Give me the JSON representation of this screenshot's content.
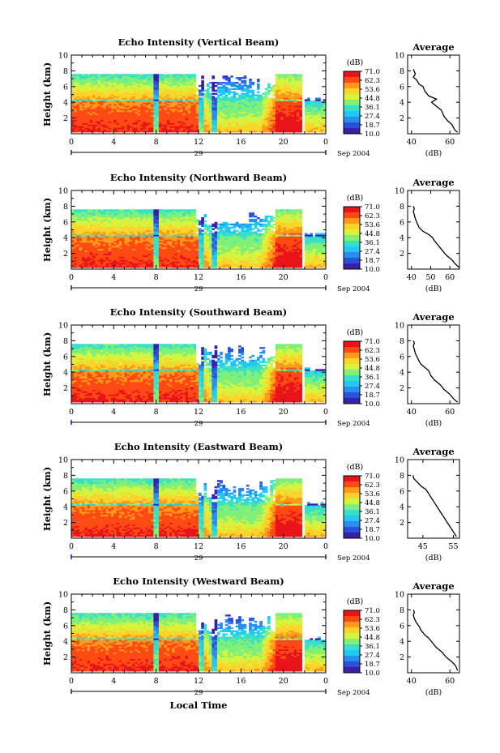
{
  "colors": {
    "cb": [
      "#3b1fa6",
      "#2a52d8",
      "#2b8df0",
      "#22c7f2",
      "#38e0c8",
      "#7ff07a",
      "#d6f43e",
      "#ffd42a",
      "#ff9a1a",
      "#ff4a14",
      "#e8141a"
    ],
    "white": "#ffffff"
  },
  "chart_data": [
    {
      "type": "heatmap",
      "title": "Echo Intensity (Vertical Beam)",
      "ylabel": "Height (km)",
      "xlabel": "",
      "x_ticks": [
        "0",
        "4",
        "8",
        "12",
        "16",
        "20",
        "0"
      ],
      "y_ticks": [
        "2",
        "4",
        "6",
        "8",
        "10"
      ],
      "xlim": [
        0,
        24
      ],
      "ylim": [
        0,
        10
      ],
      "date_day": "29",
      "date_rest": "Sep 2004",
      "colorbar": {
        "unit": "(dB)",
        "ticks": [
          "71.0",
          "62.3",
          "53.6",
          "44.8",
          "36.1",
          "27.4",
          "18.7",
          "10.0"
        ],
        "range": [
          10.0,
          71.0
        ]
      },
      "average": {
        "title": "Average",
        "xlabel": "(dB)",
        "x_ticks": [
          "40",
          "60"
        ],
        "xlim": [
          38,
          65
        ],
        "ylim": [
          0,
          10
        ],
        "profile": [
          [
            64,
            0.2
          ],
          [
            62.5,
            0.5
          ],
          [
            61,
            1.2
          ],
          [
            59,
            1.6
          ],
          [
            57,
            2.2
          ],
          [
            55.5,
            3.0
          ],
          [
            53.5,
            3.4
          ],
          [
            50.5,
            4.0
          ],
          [
            53,
            4.4
          ],
          [
            49,
            4.8
          ],
          [
            47,
            5.4
          ],
          [
            46,
            6.0
          ],
          [
            44,
            6.3
          ],
          [
            42.5,
            6.9
          ],
          [
            41,
            7.2
          ],
          [
            42,
            7.6
          ],
          [
            41.5,
            7.9
          ],
          [
            41,
            8.2
          ]
        ]
      }
    },
    {
      "type": "heatmap",
      "title": "Echo Intensity (Northward Beam)",
      "ylabel": "Height (km)",
      "xlabel": "",
      "x_ticks": [
        "0",
        "4",
        "8",
        "12",
        "16",
        "20",
        "0"
      ],
      "y_ticks": [
        "2",
        "4",
        "6",
        "8",
        "10"
      ],
      "xlim": [
        0,
        24
      ],
      "ylim": [
        0,
        10
      ],
      "date_day": "29",
      "date_rest": "Sep 2004",
      "colorbar": {
        "unit": "(dB)",
        "ticks": [
          "71.0",
          "62.3",
          "53.6",
          "44.8",
          "36.1",
          "27.4",
          "18.7",
          "10.0"
        ],
        "range": [
          10.0,
          71.0
        ]
      },
      "average": {
        "title": "Average",
        "xlabel": "(dB)",
        "x_ticks": [
          "40",
          "50",
          "60"
        ],
        "xlim": [
          38,
          65
        ],
        "ylim": [
          0,
          10
        ],
        "profile": [
          [
            65,
            0.2
          ],
          [
            63,
            0.6
          ],
          [
            61,
            1.2
          ],
          [
            58,
            1.8
          ],
          [
            56,
            2.4
          ],
          [
            54,
            3.0
          ],
          [
            52,
            3.6
          ],
          [
            51,
            4.0
          ],
          [
            49,
            4.4
          ],
          [
            46,
            4.8
          ],
          [
            44,
            5.3
          ],
          [
            43,
            5.8
          ],
          [
            42,
            6.4
          ],
          [
            41.5,
            6.9
          ],
          [
            41,
            7.3
          ],
          [
            41.5,
            7.7
          ],
          [
            41,
            8.0
          ]
        ]
      }
    },
    {
      "type": "heatmap",
      "title": "Echo Intensity (Southward Beam)",
      "ylabel": "Height (km)",
      "xlabel": "",
      "x_ticks": [
        "0",
        "4",
        "8",
        "12",
        "16",
        "20",
        "0"
      ],
      "y_ticks": [
        "2",
        "4",
        "6",
        "8",
        "10"
      ],
      "xlim": [
        0,
        24
      ],
      "ylim": [
        0,
        10
      ],
      "date_day": "29",
      "date_rest": "Sep 2004",
      "colorbar": {
        "unit": "(dB)",
        "ticks": [
          "71.0",
          "62.3",
          "53.6",
          "44.8",
          "36.1",
          "27.4",
          "18.7",
          "10.0"
        ],
        "range": [
          10.0,
          71.0
        ]
      },
      "average": {
        "title": "Average",
        "xlabel": "(dB)",
        "x_ticks": [
          "40",
          "60"
        ],
        "xlim": [
          38,
          65
        ],
        "ylim": [
          0,
          10
        ],
        "profile": [
          [
            64,
            0.2
          ],
          [
            62,
            0.6
          ],
          [
            60,
            1.2
          ],
          [
            57,
            1.8
          ],
          [
            55,
            2.4
          ],
          [
            52,
            3.0
          ],
          [
            50,
            3.6
          ],
          [
            49,
            4.2
          ],
          [
            47,
            4.6
          ],
          [
            45,
            5.0
          ],
          [
            44,
            5.4
          ],
          [
            43,
            5.9
          ],
          [
            42,
            6.4
          ],
          [
            41.5,
            6.9
          ],
          [
            41,
            7.3
          ],
          [
            41.5,
            7.7
          ],
          [
            41,
            8.0
          ]
        ]
      }
    },
    {
      "type": "heatmap",
      "title": "Echo Intensity (Eastward Beam)",
      "ylabel": "Height (km)",
      "xlabel": "",
      "x_ticks": [
        "0",
        "4",
        "8",
        "12",
        "16",
        "20",
        "0"
      ],
      "y_ticks": [
        "2",
        "4",
        "6",
        "8",
        "10"
      ],
      "xlim": [
        0,
        24
      ],
      "ylim": [
        0,
        10
      ],
      "date_day": "29",
      "date_rest": "Sep 2004",
      "colorbar": {
        "unit": "(dB)",
        "ticks": [
          "71.0",
          "62.3",
          "53.6",
          "44.8",
          "36.1",
          "27.4",
          "18.7",
          "10.0"
        ],
        "range": [
          10.0,
          71.0
        ]
      },
      "average": {
        "title": "Average",
        "xlabel": "(dB)",
        "x_ticks": [
          "45",
          "55"
        ],
        "xlim": [
          40,
          57
        ],
        "ylim": [
          0,
          10
        ],
        "profile": [
          [
            56,
            0.2
          ],
          [
            55,
            0.8
          ],
          [
            54,
            1.4
          ],
          [
            53,
            2.0
          ],
          [
            52,
            2.6
          ],
          [
            51,
            3.2
          ],
          [
            50,
            3.8
          ],
          [
            49,
            4.4
          ],
          [
            48,
            5.0
          ],
          [
            47,
            5.6
          ],
          [
            46,
            6.2
          ],
          [
            44.5,
            6.6
          ],
          [
            43,
            7.2
          ],
          [
            42,
            7.6
          ],
          [
            41.8,
            8.0
          ]
        ]
      }
    },
    {
      "type": "heatmap",
      "title": "Echo Intensity (Westward Beam)",
      "ylabel": "Height (km)",
      "xlabel": "Local Time",
      "x_ticks": [
        "0",
        "4",
        "8",
        "12",
        "16",
        "20",
        "0"
      ],
      "y_ticks": [
        "2",
        "4",
        "6",
        "8",
        "10"
      ],
      "xlim": [
        0,
        24
      ],
      "ylim": [
        0,
        10
      ],
      "date_day": "29",
      "date_rest": "Sep 2004",
      "colorbar": {
        "unit": "(dB)",
        "ticks": [
          "71.0",
          "62.3",
          "53.6",
          "44.8",
          "36.1",
          "27.4",
          "18.7",
          "10.0"
        ],
        "range": [
          10.0,
          71.0
        ]
      },
      "average": {
        "title": "Average",
        "xlabel": "(dB)",
        "x_ticks": [
          "40",
          "60"
        ],
        "xlim": [
          38,
          65
        ],
        "ylim": [
          0,
          10
        ],
        "profile": [
          [
            64,
            0.3
          ],
          [
            63,
            0.9
          ],
          [
            61,
            1.4
          ],
          [
            58,
            2.0
          ],
          [
            56,
            2.6
          ],
          [
            53,
            3.2
          ],
          [
            51,
            3.8
          ],
          [
            49,
            4.4
          ],
          [
            47,
            4.8
          ],
          [
            45,
            5.4
          ],
          [
            44,
            5.9
          ],
          [
            42.5,
            6.4
          ],
          [
            41.5,
            6.9
          ],
          [
            41,
            7.3
          ],
          [
            41.5,
            7.7
          ],
          [
            41,
            8.0
          ]
        ]
      }
    }
  ]
}
